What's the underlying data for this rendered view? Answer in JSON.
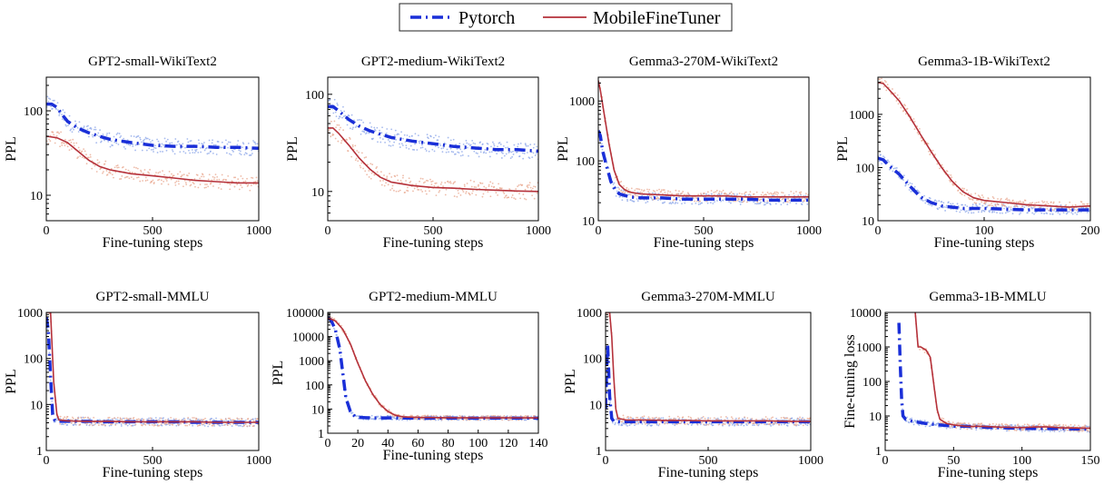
{
  "legend": {
    "items": [
      {
        "name": "Pytorch",
        "color": "#1a2fd8",
        "style": "dashdot"
      },
      {
        "name": "MobileFineTuner",
        "color": "#b5313a",
        "style": "solid"
      }
    ]
  },
  "chart_data": [
    {
      "type": "line",
      "title": "GPT2-small-WikiText2",
      "xlabel": "Fine-tuning steps",
      "ylabel": "PPL",
      "yscale": "log",
      "xlim": [
        0,
        1000
      ],
      "ylim": [
        5,
        250
      ],
      "xticks": [
        0,
        500,
        1000
      ],
      "xtick_labels": [
        "0",
        "500",
        "1000"
      ],
      "yticks": [
        10,
        100
      ],
      "ytick_labels": [
        "10",
        "100"
      ],
      "series": [
        {
          "name": "Pytorch",
          "x": [
            0,
            25,
            50,
            75,
            100,
            150,
            200,
            250,
            300,
            400,
            500,
            600,
            700,
            800,
            900,
            1000
          ],
          "y": [
            120,
            120,
            110,
            90,
            75,
            62,
            55,
            50,
            46,
            42,
            39,
            38,
            38,
            37,
            37,
            36
          ]
        },
        {
          "name": "MobileFineTuner",
          "x": [
            0,
            50,
            100,
            150,
            200,
            250,
            300,
            400,
            500,
            600,
            700,
            800,
            900,
            1000
          ],
          "y": [
            50,
            48,
            42,
            33,
            26,
            22,
            20,
            18,
            17,
            16,
            15,
            14.5,
            14,
            14
          ]
        }
      ]
    },
    {
      "type": "line",
      "title": "GPT2-medium-WikiText2",
      "xlabel": "Fine-tuning steps",
      "ylabel": "PPL",
      "yscale": "log",
      "xlim": [
        0,
        1000
      ],
      "ylim": [
        5,
        150
      ],
      "xticks": [
        0,
        500,
        1000
      ],
      "xtick_labels": [
        "0",
        "500",
        "1000"
      ],
      "yticks": [
        10,
        100
      ],
      "ytick_labels": [
        "10",
        "100"
      ],
      "series": [
        {
          "name": "Pytorch",
          "x": [
            0,
            25,
            50,
            100,
            150,
            200,
            300,
            400,
            500,
            600,
            700,
            800,
            900,
            1000
          ],
          "y": [
            75,
            75,
            68,
            55,
            47,
            42,
            36,
            33,
            31,
            29,
            28,
            27,
            27,
            26
          ]
        },
        {
          "name": "MobileFineTuner",
          "x": [
            0,
            25,
            50,
            100,
            150,
            200,
            250,
            300,
            400,
            500,
            600,
            700,
            800,
            900,
            1000
          ],
          "y": [
            45,
            45,
            40,
            30,
            22,
            17,
            14,
            12.5,
            11.5,
            11,
            10.8,
            10.5,
            10.3,
            10.1,
            10
          ]
        }
      ]
    },
    {
      "type": "line",
      "title": "Gemma3-270M-WikiText2",
      "xlabel": "Fine-tuning steps",
      "ylabel": "PPL",
      "yscale": "log",
      "xlim": [
        0,
        1000
      ],
      "ylim": [
        10,
        2500
      ],
      "xticks": [
        0,
        500,
        1000
      ],
      "xtick_labels": [
        "0",
        "500",
        "1000"
      ],
      "yticks": [
        10,
        100,
        1000
      ],
      "ytick_labels": [
        "10",
        "100",
        "1000"
      ],
      "series": [
        {
          "name": "Pytorch",
          "x": [
            0,
            10,
            20,
            40,
            60,
            80,
            100,
            150,
            200,
            300,
            400,
            500,
            600,
            700,
            800,
            900,
            1000
          ],
          "y": [
            320,
            260,
            150,
            80,
            45,
            33,
            28,
            25,
            24,
            24,
            23,
            23,
            23,
            23,
            22,
            22,
            22
          ]
        },
        {
          "name": "MobileFineTuner",
          "x": [
            0,
            10,
            25,
            50,
            75,
            100,
            125,
            150,
            200,
            300,
            400,
            500,
            600,
            700,
            800,
            900,
            1000
          ],
          "y": [
            2200,
            1500,
            700,
            200,
            70,
            40,
            33,
            30,
            28,
            27,
            26,
            26,
            26,
            25,
            25,
            25,
            25
          ]
        }
      ]
    },
    {
      "type": "line",
      "title": "Gemma3-1B-WikiText2",
      "xlabel": "Fine-tuning steps",
      "ylabel": "PPL",
      "yscale": "log",
      "xlim": [
        0,
        200
      ],
      "ylim": [
        10,
        5000
      ],
      "xticks": [
        0,
        100,
        200
      ],
      "xtick_labels": [
        "0",
        "100",
        "200"
      ],
      "yticks": [
        10,
        100,
        1000
      ],
      "ytick_labels": [
        "10",
        "100",
        "1000"
      ],
      "series": [
        {
          "name": "Pytorch",
          "x": [
            0,
            5,
            10,
            20,
            30,
            40,
            50,
            60,
            70,
            80,
            100,
            120,
            140,
            160,
            180,
            200
          ],
          "y": [
            150,
            140,
            110,
            75,
            45,
            28,
            22,
            19,
            18,
            17,
            17,
            16.5,
            16,
            16,
            16,
            16
          ]
        },
        {
          "name": "MobileFineTuner",
          "x": [
            0,
            5,
            10,
            20,
            30,
            40,
            50,
            60,
            70,
            80,
            90,
            100,
            120,
            140,
            160,
            180,
            200
          ],
          "y": [
            4000,
            3800,
            3000,
            1800,
            900,
            420,
            200,
            100,
            55,
            35,
            27,
            24,
            22,
            20,
            19,
            18,
            19
          ]
        }
      ]
    },
    {
      "type": "line",
      "title": "GPT2-small-MMLU",
      "xlabel": "Fine-tuning steps",
      "ylabel": "PPL",
      "yscale": "log",
      "xlim": [
        0,
        1000
      ],
      "ylim": [
        1,
        1000
      ],
      "xticks": [
        0,
        500,
        1000
      ],
      "xtick_labels": [
        "0",
        "500",
        "1000"
      ],
      "yticks": [
        1,
        10,
        100,
        1000
      ],
      "ytick_labels": [
        "1",
        "10",
        "100",
        "1000"
      ],
      "series": [
        {
          "name": "Pytorch",
          "x": [
            0,
            10,
            20,
            30,
            40,
            50,
            100,
            200,
            300,
            400,
            500,
            600,
            700,
            800,
            900,
            1000
          ],
          "y": [
            800,
            400,
            40,
            6,
            4.5,
            4.3,
            4.3,
            4.3,
            4.2,
            4.2,
            4.2,
            4.2,
            4.1,
            4.1,
            4.1,
            4.1
          ]
        },
        {
          "name": "MobileFineTuner",
          "x": [
            0,
            20,
            35,
            50,
            60,
            100,
            200,
            300,
            400,
            500,
            600,
            700,
            800,
            900,
            1000
          ],
          "y": [
            1000,
            1000,
            30,
            6,
            4.6,
            4.4,
            4.3,
            4.3,
            4.2,
            4.2,
            4.2,
            4.2,
            4.1,
            4.1,
            4.1
          ]
        }
      ]
    },
    {
      "type": "line",
      "title": "GPT2-medium-MMLU",
      "xlabel": "Fine-tuning steps",
      "ylabel": "PPL",
      "yscale": "log",
      "xlim": [
        0,
        140
      ],
      "ylim": [
        1,
        100000
      ],
      "xticks": [
        0,
        20,
        40,
        60,
        80,
        100,
        120,
        140
      ],
      "xtick_labels": [
        "0",
        "20",
        "40",
        "60",
        "80",
        "100",
        "120",
        "140"
      ],
      "yticks": [
        1,
        10,
        100,
        1000,
        10000,
        100000
      ],
      "ytick_labels": [
        "1",
        "10",
        "100",
        "1000",
        "10000",
        "100000"
      ],
      "series": [
        {
          "name": "Pytorch",
          "x": [
            0,
            2,
            5,
            8,
            10,
            12,
            15,
            18,
            20,
            25,
            30,
            40,
            60,
            80,
            100,
            120,
            140
          ],
          "y": [
            60000,
            50000,
            20000,
            3000,
            300,
            30,
            8,
            5,
            4.5,
            4.4,
            4.3,
            4.3,
            4.2,
            4.2,
            4.2,
            4.2,
            4.2
          ]
        },
        {
          "name": "MobileFineTuner",
          "x": [
            0,
            5,
            10,
            15,
            20,
            25,
            30,
            35,
            40,
            45,
            50,
            60,
            80,
            100,
            120,
            140
          ],
          "y": [
            60000,
            45000,
            20000,
            5000,
            800,
            150,
            40,
            15,
            8,
            5.5,
            4.8,
            4.5,
            4.4,
            4.3,
            4.3,
            4.3
          ]
        }
      ]
    },
    {
      "type": "line",
      "title": "Gemma3-270M-MMLU",
      "xlabel": "Fine-tuning steps",
      "ylabel": "PPL",
      "yscale": "log",
      "xlim": [
        0,
        1000
      ],
      "ylim": [
        1,
        1000
      ],
      "xticks": [
        0,
        500,
        1000
      ],
      "xtick_labels": [
        "0",
        "500",
        "1000"
      ],
      "yticks": [
        1,
        10,
        100,
        1000
      ],
      "ytick_labels": [
        "1",
        "10",
        "100",
        "1000"
      ],
      "series": [
        {
          "name": "Pytorch",
          "x": [
            0,
            5,
            10,
            20,
            30,
            40,
            60,
            100,
            200,
            300,
            400,
            500,
            600,
            700,
            800,
            900,
            1000
          ],
          "y": [
            8,
            50,
            200,
            15,
            5,
            4.3,
            4.2,
            4.2,
            4.2,
            4.2,
            4.2,
            4.2,
            4.2,
            4.2,
            4.2,
            4.2,
            4.2
          ]
        },
        {
          "name": "MobileFineTuner",
          "x": [
            0,
            20,
            30,
            40,
            50,
            60,
            100,
            200,
            300,
            400,
            500,
            600,
            700,
            800,
            900,
            1000
          ],
          "y": [
            1000,
            1000,
            300,
            40,
            8,
            5,
            4.6,
            4.6,
            4.5,
            4.5,
            4.4,
            4.4,
            4.4,
            4.4,
            4.3,
            4.3
          ]
        }
      ]
    },
    {
      "type": "line",
      "title": "Gemma3-1B-MMLU",
      "xlabel": "Fine-tuning steps",
      "ylabel": "Fine-tuning loss",
      "yscale": "log",
      "xlim": [
        0,
        150
      ],
      "ylim": [
        1,
        10000
      ],
      "xticks": [
        0,
        50,
        100,
        150
      ],
      "xtick_labels": [
        "0",
        "50",
        "100",
        "150"
      ],
      "yticks": [
        1,
        10,
        100,
        1000,
        10000
      ],
      "ytick_labels": [
        "1",
        "10",
        "100",
        "1000",
        "10000"
      ],
      "series": [
        {
          "name": "Pytorch",
          "x": [
            10,
            11,
            12,
            13,
            15,
            20,
            30,
            40,
            50,
            60,
            70,
            80,
            90,
            100,
            110,
            120,
            130,
            140,
            150
          ],
          "y": [
            5000,
            300,
            30,
            10,
            8,
            7,
            6,
            5.5,
            5,
            5,
            4.8,
            4.6,
            4.5,
            4.4,
            4.3,
            4.3,
            4.3,
            4.2,
            4.2
          ]
        },
        {
          "name": "MobileFineTuner",
          "x": [
            22,
            24,
            26,
            30,
            33,
            36,
            38,
            40,
            45,
            50,
            60,
            70,
            80,
            90,
            100,
            110,
            120,
            130,
            140,
            150
          ],
          "y": [
            10000,
            1000,
            1000,
            800,
            500,
            60,
            15,
            8,
            6,
            5.5,
            5,
            5,
            4.8,
            4.7,
            4.6,
            4.8,
            4.8,
            4.5,
            4.5,
            4.4
          ]
        }
      ]
    }
  ]
}
